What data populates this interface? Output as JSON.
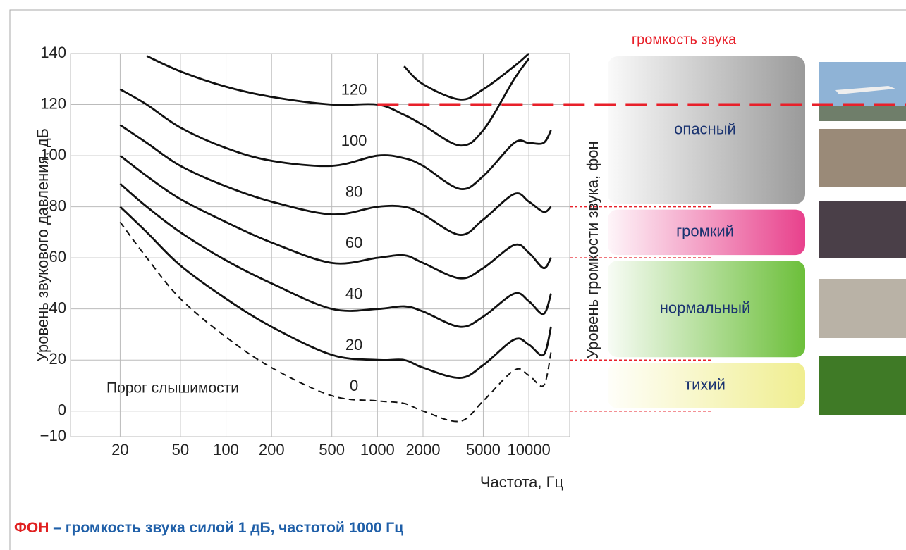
{
  "chart_data": {
    "type": "line",
    "section_title": "громкость звука",
    "right_axis_label": "Уровень громкости звука, фон",
    "ylabel": "Уровень звукового давления, дБ",
    "xlabel": "Частота, Гц",
    "annotation": "Порог слышимости",
    "log_x": true,
    "grid": true,
    "xlim": [
      9.4,
      18600
    ],
    "ylim": [
      -10,
      140
    ],
    "xticks": [
      20,
      50,
      100,
      200,
      500,
      1000,
      2000,
      5000,
      10000
    ],
    "yticks": [
      140,
      120,
      100,
      80,
      60,
      40,
      20,
      0,
      {
        "value": -10,
        "label": "−10"
      }
    ],
    "x": [
      20,
      30,
      50,
      100,
      200,
      500,
      1000,
      1500,
      2000,
      3500,
      5000,
      8000,
      10000,
      12500,
      14000
    ],
    "series": [
      {
        "color": "#111",
        "values": [
          null,
          null,
          null,
          null,
          null,
          null,
          null,
          135,
          128,
          122,
          126,
          135,
          140,
          null,
          null
        ]
      },
      {
        "name": "120",
        "color": "#111",
        "values": [
          null,
          139,
          133,
          127,
          123,
          120,
          120,
          116,
          112,
          104,
          110,
          130,
          138,
          null,
          null
        ]
      },
      {
        "name": "100",
        "color": "#111",
        "values": [
          126,
          120,
          111,
          103,
          98,
          96,
          100,
          99,
          96,
          87,
          92,
          105,
          105,
          105,
          110
        ]
      },
      {
        "name": "80",
        "color": "#111",
        "values": [
          112,
          105,
          96,
          88,
          82,
          77,
          80,
          80,
          77,
          69,
          75,
          85,
          82,
          78,
          80
        ]
      },
      {
        "name": "60",
        "color": "#111",
        "values": [
          100,
          92,
          83,
          74,
          66,
          58,
          60,
          61,
          58,
          52,
          56,
          65,
          62,
          56,
          60
        ]
      },
      {
        "name": "40",
        "color": "#111",
        "values": [
          89,
          80,
          70,
          59,
          50,
          40,
          40,
          41,
          39,
          33,
          37,
          46,
          43,
          38,
          46
        ]
      },
      {
        "name": "20",
        "color": "#111",
        "values": [
          80,
          70,
          57,
          44,
          33,
          22,
          20,
          20,
          17,
          13,
          18,
          28,
          26,
          22,
          33
        ]
      },
      {
        "name": "0",
        "color": "#111",
        "dashed": true,
        "values": [
          74,
          60,
          44,
          29,
          17,
          6,
          4,
          3,
          0,
          -4,
          4,
          16,
          14,
          10,
          23
        ]
      }
    ],
    "reference_line": {
      "value": 120,
      "from_x": 1000,
      "color": "#e8202a"
    },
    "levels": [
      {
        "label": "опасный",
        "from": 80,
        "to": 140,
        "color": "#9a9a9a"
      },
      {
        "label": "громкий",
        "from": 60,
        "to": 80,
        "color": "#e8418c"
      },
      {
        "label": "нормальный",
        "from": 20,
        "to": 60,
        "color": "#6cbf3a"
      },
      {
        "label": "тихий",
        "from": 0,
        "to": 20,
        "color": "#f0ee90"
      }
    ],
    "footer": {
      "term": "ФОН",
      "definition": " – громкость звука силой 1 дБ, частотой 1000 Гц"
    }
  }
}
